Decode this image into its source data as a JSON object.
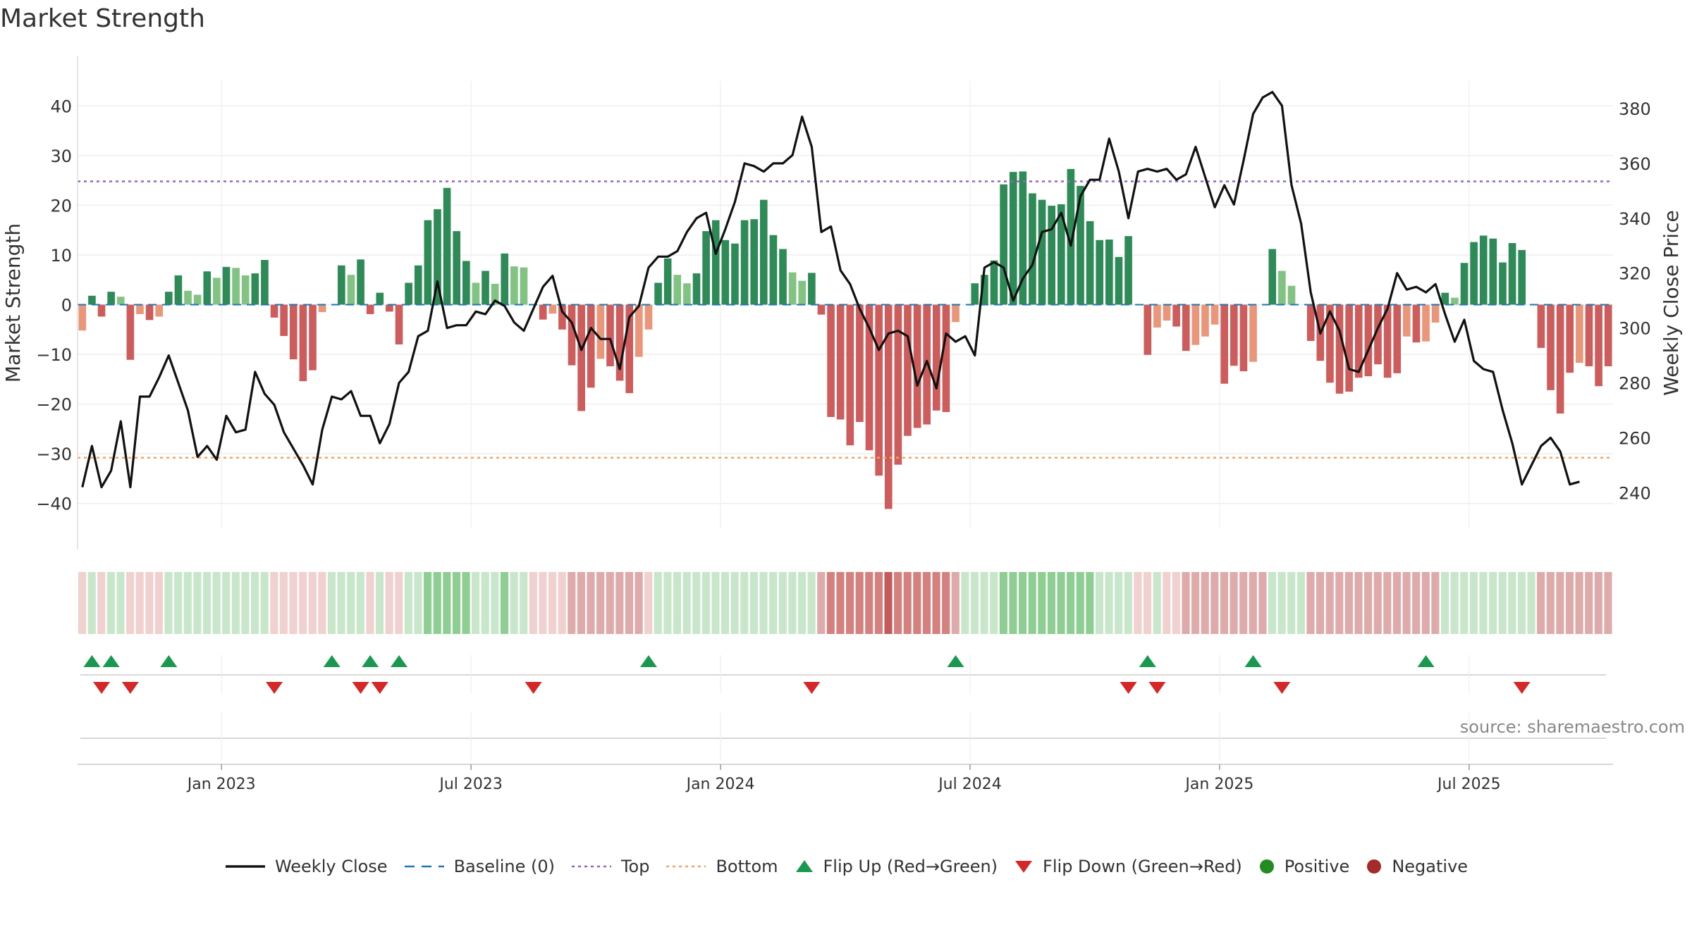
{
  "title": "Market Strength",
  "source": "source: sharemaestro.com",
  "colors": {
    "pos_dark": "#2e8b57",
    "pos_light": "#82c282",
    "neg_dark": "#cd5c5c",
    "neg_light": "#e9967a",
    "line": "#111111",
    "baseline": "#1f77b4",
    "top": "#9467bd",
    "bottom": "#f4a460",
    "flip_up": "#1a9850",
    "flip_down": "#d62728",
    "positive": "#228b22",
    "negative": "#a52a2a"
  },
  "chart_data": {
    "type": "bar+line",
    "title": "Market Strength",
    "ylabel_left": "Market Strength",
    "ylabel_right": "Weekly Close Price",
    "ylim_left": [
      -45,
      45
    ],
    "ylim_right": [
      227,
      390
    ],
    "yticks_left": [
      "40",
      "30",
      "20",
      "10",
      "0",
      "−10",
      "−20",
      "−30",
      "−40"
    ],
    "yticks_left_values": [
      40,
      30,
      20,
      10,
      0,
      -10,
      -20,
      -30,
      -40
    ],
    "yticks_right": [
      "380",
      "360",
      "340",
      "320",
      "300",
      "280",
      "260",
      "240"
    ],
    "yticks_right_values": [
      380,
      360,
      340,
      320,
      300,
      280,
      260,
      240
    ],
    "xticks": [
      "Jan 2023",
      "Jul 2023",
      "Jan 2024",
      "Jul 2024",
      "Jan 2025",
      "Jul 2025"
    ],
    "xticks_week_index": [
      15,
      41,
      67,
      93,
      119,
      145
    ],
    "top_threshold": 24.8,
    "bottom_threshold": -30.8,
    "baseline": 0,
    "strength": [
      -5.2,
      1.8,
      -2.4,
      2.6,
      1.6,
      -11.1,
      -1.9,
      -3.1,
      -2.4,
      2.6,
      5.9,
      2.8,
      2.0,
      6.7,
      5.4,
      7.6,
      7.4,
      5.9,
      6.3,
      9.0,
      -2.6,
      -6.3,
      -11.0,
      -15.4,
      -13.2,
      -1.5,
      0,
      7.9,
      6.0,
      9.1,
      -1.9,
      2.4,
      -1.4,
      -8.0,
      4.4,
      7.9,
      17.0,
      19.2,
      23.5,
      14.8,
      8.8,
      4.4,
      6.8,
      4.2,
      10.3,
      7.7,
      7.5,
      0,
      -3.0,
      -1.8,
      -5.0,
      -12.2,
      -21.4,
      -16.7,
      -10.9,
      -12.4,
      -15.3,
      -17.8,
      -10.5,
      -5.0,
      4.4,
      9.3,
      6.0,
      4.3,
      6.3,
      14.8,
      17.0,
      13.0,
      12.3,
      17.0,
      17.2,
      21.1,
      14.0,
      11.2,
      6.5,
      4.8,
      6.4,
      -2.0,
      -22.6,
      -23.1,
      -28.3,
      -23.6,
      -29.3,
      -34.4,
      -41.1,
      -32.2,
      -26.4,
      -24.8,
      -24.1,
      -21.3,
      -21.6,
      -3.5,
      0,
      4.3,
      6.0,
      8.9,
      24.2,
      26.7,
      26.8,
      22.4,
      21.1,
      19.9,
      20.2,
      27.3,
      23.9,
      16.8,
      13.0,
      13.1,
      9.6,
      13.8,
      0,
      -10.1,
      -4.6,
      -3.2,
      -4.4,
      -9.3,
      -8.1,
      -6.4,
      -4.0,
      -15.9,
      -12.3,
      -13.4,
      -11.5,
      0,
      11.2,
      6.8,
      3.8,
      0,
      -7.3,
      -11.3,
      -15.7,
      -17.9,
      -17.5,
      -14.7,
      -14.4,
      -12.0,
      -14.7,
      -13.8,
      -6.4,
      -7.6,
      -7.4,
      -3.6,
      2.4,
      1.4,
      8.4,
      12.6,
      13.9,
      13.3,
      8.5,
      12.4,
      11.0,
      0,
      -8.7,
      -17.2,
      -21.9,
      -13.7,
      -11.7,
      -12.4,
      -16.4,
      -12.4
    ],
    "weekly_close": [
      242,
      257,
      242,
      248,
      266,
      242,
      275,
      275,
      282,
      290,
      280,
      270,
      253,
      257,
      252,
      268,
      262,
      263,
      284,
      276,
      272,
      262,
      256,
      250,
      243,
      263,
      275,
      274,
      277,
      268,
      268,
      258,
      265,
      280,
      284,
      297,
      299,
      317,
      300,
      301,
      301,
      306,
      305,
      310,
      308,
      302,
      299,
      307,
      315,
      319,
      306,
      302,
      292,
      300,
      296,
      296,
      285,
      304,
      308,
      322,
      326,
      326,
      328,
      335,
      340,
      342,
      327,
      336,
      346,
      360,
      359,
      357,
      360,
      360,
      363,
      377,
      366,
      335,
      337,
      321,
      316,
      307,
      300,
      292,
      298,
      299,
      297,
      279,
      288,
      278,
      298,
      295,
      297,
      290,
      322,
      324,
      322,
      310,
      318,
      323,
      335,
      336,
      342,
      330,
      348,
      354,
      354,
      369,
      357,
      340,
      357,
      358,
      357,
      358,
      354,
      356,
      366,
      355,
      344,
      352,
      345,
      361,
      378,
      384,
      386,
      381,
      352,
      338,
      313,
      298,
      306,
      299,
      285,
      284,
      292,
      300,
      307,
      320,
      314,
      315,
      313,
      316,
      305,
      295,
      303,
      288,
      285,
      284,
      270,
      258,
      243,
      250,
      257,
      260,
      255,
      243,
      244
    ]
  },
  "regime": {
    "levels": [
      -1,
      1,
      -1,
      1,
      1,
      -1,
      -1,
      -1,
      -1,
      1,
      1,
      1,
      1,
      1,
      1,
      1,
      1,
      1,
      1,
      1,
      -1,
      -1,
      -1,
      -1,
      -1,
      -1,
      1,
      1,
      1,
      1,
      -1,
      1,
      -1,
      -1,
      1,
      1,
      2,
      2,
      2,
      2,
      2,
      1,
      1,
      1,
      2,
      1,
      1,
      -1,
      -1,
      -1,
      -1,
      -2,
      -2,
      -2,
      -2,
      -2,
      -2,
      -2,
      -2,
      -1,
      1,
      1,
      1,
      1,
      1,
      1,
      1,
      1,
      1,
      1,
      1,
      1,
      1,
      1,
      1,
      1,
      1,
      -2,
      -3,
      -3,
      -3,
      -3,
      -3,
      -3,
      -4,
      -3,
      -3,
      -3,
      -3,
      -3,
      -3,
      -2,
      1,
      1,
      1,
      1,
      2,
      2,
      2,
      2,
      2,
      2,
      2,
      2,
      2,
      2,
      1,
      1,
      1,
      1,
      -1,
      -1,
      1,
      -1,
      -1,
      -2,
      -2,
      -2,
      -2,
      -2,
      -2,
      -2,
      -2,
      -2,
      1,
      1,
      1,
      1,
      -2,
      -2,
      -2,
      -2,
      -2,
      -2,
      -2,
      -2,
      -2,
      -2,
      -2,
      -2,
      -2,
      -2,
      1,
      1,
      1,
      1,
      1,
      1,
      1,
      1,
      1,
      1,
      -2,
      -2,
      -2,
      -2,
      -2,
      -2,
      -2,
      -2
    ]
  },
  "flips": {
    "up_week_index": [
      1,
      3,
      9,
      26,
      30,
      33,
      59,
      91,
      111,
      122,
      140
    ],
    "down_week_index": [
      2,
      5,
      20,
      29,
      31,
      47,
      76,
      109,
      112,
      125,
      150
    ]
  },
  "legend": [
    {
      "key": "weekly_close",
      "label": "Weekly Close"
    },
    {
      "key": "baseline",
      "label": "Baseline (0)"
    },
    {
      "key": "top",
      "label": "Top"
    },
    {
      "key": "bottom",
      "label": "Bottom"
    },
    {
      "key": "flip_up",
      "label": "Flip Up (Red→Green)"
    },
    {
      "key": "flip_down",
      "label": "Flip Down (Green→Red)"
    },
    {
      "key": "positive",
      "label": "Positive"
    },
    {
      "key": "negative",
      "label": "Negative"
    }
  ]
}
